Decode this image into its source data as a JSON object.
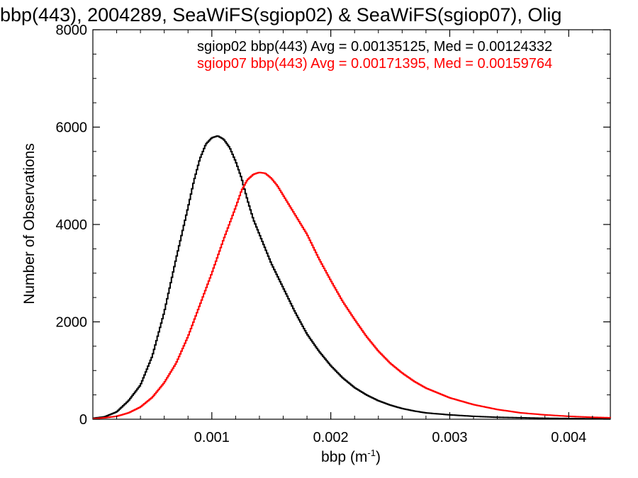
{
  "chart_data": {
    "type": "line",
    "title": "bbp(443), 2004289, SeaWiFS(sgiop02) & SeaWiFS(sgiop07), Olig",
    "xlabel": "bbp (m",
    "xlabel_sup": "-1",
    "xlabel_close": ")",
    "ylabel": "Number of Observations",
    "xlim": [
      0.0,
      0.00435
    ],
    "ylim": [
      0,
      8000
    ],
    "xticks": [
      {
        "value": 0.001,
        "label": "0.001"
      },
      {
        "value": 0.002,
        "label": "0.002"
      },
      {
        "value": 0.003,
        "label": "0.003"
      },
      {
        "value": 0.004,
        "label": "0.004"
      }
    ],
    "yticks": [
      {
        "value": 0,
        "label": "0"
      },
      {
        "value": 2000,
        "label": "2000"
      },
      {
        "value": 4000,
        "label": "4000"
      },
      {
        "value": 6000,
        "label": "6000"
      },
      {
        "value": 8000,
        "label": "8000"
      }
    ],
    "legend_placement": "top-right",
    "series": [
      {
        "name": "sgiop02",
        "color": "#000000",
        "legend_text": "sgiop02 bbp(443) Avg = 0.00135125, Med = 0.00124332",
        "x": [
          0.0,
          0.0001,
          0.0002,
          0.0003,
          0.0004,
          0.0005,
          0.0006,
          0.0007,
          0.0008,
          0.00085,
          0.0009,
          0.00095,
          0.001,
          0.00105,
          0.0011,
          0.00115,
          0.0012,
          0.00125,
          0.0013,
          0.00135,
          0.0014,
          0.00145,
          0.0015,
          0.00155,
          0.0016,
          0.0017,
          0.0018,
          0.0019,
          0.002,
          0.0021,
          0.0022,
          0.0023,
          0.0024,
          0.0025,
          0.0026,
          0.0027,
          0.0028,
          0.003,
          0.0032,
          0.0034,
          0.0036,
          0.0038,
          0.004,
          0.0042,
          0.00435
        ],
        "y": [
          20,
          50,
          150,
          380,
          700,
          1300,
          2200,
          3300,
          4350,
          4900,
          5350,
          5650,
          5780,
          5820,
          5750,
          5580,
          5300,
          4950,
          4500,
          4100,
          3800,
          3500,
          3200,
          2950,
          2700,
          2200,
          1750,
          1400,
          1100,
          850,
          650,
          500,
          380,
          290,
          220,
          170,
          130,
          90,
          60,
          40,
          30,
          20,
          15,
          10,
          10
        ]
      },
      {
        "name": "sgiop07",
        "color": "#ff0000",
        "legend_text": "sgiop07 bbp(443) Avg = 0.00171395, Med = 0.00159764",
        "x": [
          0.0,
          0.0001,
          0.0002,
          0.0003,
          0.0004,
          0.0005,
          0.0006,
          0.0007,
          0.0008,
          0.0009,
          0.001,
          0.0011,
          0.0012,
          0.00125,
          0.0013,
          0.00135,
          0.0014,
          0.00145,
          0.0015,
          0.00155,
          0.0016,
          0.0017,
          0.0018,
          0.0019,
          0.002,
          0.0021,
          0.0022,
          0.0023,
          0.0024,
          0.0025,
          0.0026,
          0.0027,
          0.0028,
          0.003,
          0.0032,
          0.0034,
          0.0036,
          0.0038,
          0.004,
          0.0042,
          0.00435
        ],
        "y": [
          10,
          30,
          60,
          130,
          250,
          450,
          750,
          1150,
          1700,
          2350,
          3000,
          3700,
          4350,
          4700,
          4920,
          5030,
          5070,
          5050,
          4950,
          4800,
          4600,
          4200,
          3800,
          3300,
          2850,
          2420,
          2050,
          1700,
          1400,
          1150,
          950,
          780,
          640,
          440,
          300,
          200,
          130,
          90,
          60,
          40,
          30
        ]
      }
    ]
  }
}
